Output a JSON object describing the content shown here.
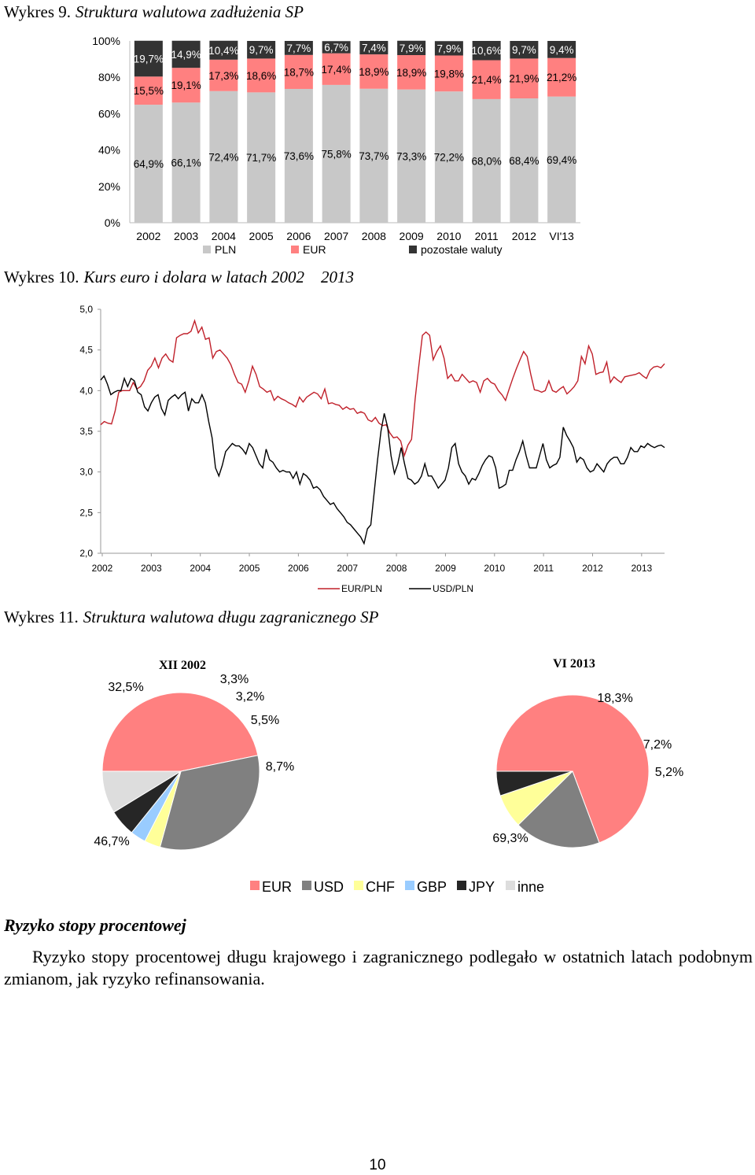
{
  "figure9": {
    "label": "Wykres 9.",
    "title": "Struktura walutowa zadłużenia SP"
  },
  "figure10": {
    "label": "Wykres 10.",
    "title": "Kurs euro i dolara w latach 2002 2013"
  },
  "figure11": {
    "label": "Wykres 11.",
    "title": "Struktura walutowa długu zagranicznego SP"
  },
  "colors": {
    "pln": "#c8c8c8",
    "eur": "#ff8080",
    "other": "#333333",
    "usd": "#808080",
    "chf": "#ffff99",
    "gbp": "#99ccff",
    "jpy": "#262626",
    "inne": "#dddddd",
    "eur_line": "#c0202a",
    "usd_line": "#000000"
  },
  "chart_data": [
    {
      "type": "bar",
      "stacked": true,
      "title": "Struktura walutowa zadłużenia SP",
      "categories": [
        "2002",
        "2003",
        "2004",
        "2005",
        "2006",
        "2007",
        "2008",
        "2009",
        "2010",
        "2011",
        "2012",
        "VI'13"
      ],
      "y_ticks": [
        "0%",
        "20%",
        "40%",
        "60%",
        "80%",
        "100%"
      ],
      "ylim": [
        0,
        100
      ],
      "series": [
        {
          "name": "PLN",
          "values": [
            64.9,
            66.1,
            72.4,
            71.7,
            73.6,
            75.8,
            73.7,
            73.3,
            72.2,
            68.0,
            68.4,
            69.4
          ],
          "labels": [
            "64,9%",
            "66,1%",
            "72,4%",
            "71,7%",
            "73,6%",
            "75,8%",
            "73,7%",
            "73,3%",
            "72,2%",
            "68,0%",
            "68,4%",
            "69,4%"
          ]
        },
        {
          "name": "EUR",
          "values": [
            15.5,
            19.1,
            17.3,
            18.6,
            18.7,
            17.4,
            18.9,
            18.9,
            19.8,
            21.4,
            21.9,
            21.2
          ],
          "labels": [
            "15,5%",
            "19,1%",
            "17,3%",
            "18,6%",
            "18,7%",
            "17,4%",
            "18,9%",
            "18,9%",
            "19,8%",
            "21,4%",
            "21,9%",
            "21,2%"
          ]
        },
        {
          "name": "pozostałe waluty",
          "values": [
            19.7,
            14.9,
            10.4,
            9.7,
            7.7,
            6.7,
            7.4,
            7.9,
            7.9,
            10.6,
            9.7,
            9.4
          ],
          "labels": [
            "19,7%",
            "14,9%",
            "10,4%",
            "9,7%",
            "7,7%",
            "6,7%",
            "7,4%",
            "7,9%",
            "7,9%",
            "10,6%",
            "9,7%",
            "9,4%"
          ]
        }
      ],
      "legend": [
        "PLN",
        "EUR",
        "pozostałe waluty"
      ]
    },
    {
      "type": "line",
      "title": "Kurs euro i dolara w latach 2002 2013",
      "x_ticks": [
        "2002",
        "2003",
        "2004",
        "2005",
        "2006",
        "2007",
        "2008",
        "2009",
        "2010",
        "2011",
        "2012",
        "2013"
      ],
      "y_ticks": [
        "2,0",
        "2,5",
        "3,0",
        "3,5",
        "4,0",
        "4,5",
        "5,0"
      ],
      "ylim": [
        2.0,
        5.0
      ],
      "x_start": 2002.0,
      "x_step": 0.125,
      "series": [
        {
          "name": "EUR/PLN",
          "values": [
            3.58,
            3.62,
            3.6,
            3.59,
            3.75,
            3.98,
            4.0,
            4.0,
            4.0,
            4.1,
            4.02,
            4.05,
            4.12,
            4.25,
            4.3,
            4.4,
            4.28,
            4.4,
            4.45,
            4.38,
            4.35,
            4.65,
            4.68,
            4.7,
            4.7,
            4.73,
            4.86,
            4.71,
            4.78,
            4.63,
            4.65,
            4.4,
            4.48,
            4.5,
            4.45,
            4.4,
            4.32,
            4.2,
            4.1,
            4.08,
            3.98,
            4.12,
            4.3,
            4.2,
            4.05,
            4.02,
            3.98,
            4.0,
            3.88,
            3.93,
            3.9,
            3.88,
            3.85,
            3.83,
            3.8,
            3.92,
            3.86,
            3.92,
            3.95,
            3.98,
            3.96,
            3.9,
            4.02,
            3.84,
            3.85,
            3.83,
            3.82,
            3.77,
            3.8,
            3.77,
            3.78,
            3.72,
            3.74,
            3.72,
            3.64,
            3.62,
            3.67,
            3.6,
            3.57,
            3.58,
            3.48,
            3.42,
            3.43,
            3.38,
            3.2,
            3.33,
            3.4,
            3.9,
            4.3,
            4.68,
            4.72,
            4.68,
            4.38,
            4.48,
            4.55,
            4.4,
            4.15,
            4.2,
            4.12,
            4.12,
            4.2,
            4.15,
            4.1,
            4.12,
            4.1,
            3.98,
            4.12,
            4.15,
            4.1,
            4.08,
            4.0,
            3.95,
            3.88,
            4.02,
            4.15,
            4.27,
            4.38,
            4.48,
            4.42,
            4.2,
            4.01,
            4.0,
            3.98,
            4.0,
            4.12,
            4.0,
            3.98,
            4.02,
            4.05,
            3.96,
            4.0,
            4.05,
            4.12,
            4.42,
            4.33,
            4.55,
            4.45,
            4.2,
            4.22,
            4.23,
            4.35,
            4.1,
            4.17,
            4.13,
            4.1,
            4.17,
            4.18,
            4.19,
            4.2,
            4.22,
            4.18,
            4.15,
            4.25,
            4.29,
            4.3,
            4.28,
            4.33
          ]
        },
        {
          "name": "USD/PLN",
          "values": [
            4.13,
            4.18,
            4.08,
            3.95,
            3.98,
            4.0,
            4.0,
            4.15,
            4.05,
            4.15,
            4.12,
            3.98,
            3.95,
            3.8,
            3.75,
            3.85,
            3.92,
            3.95,
            3.78,
            3.7,
            3.88,
            3.92,
            3.95,
            3.9,
            3.95,
            3.98,
            3.75,
            3.9,
            3.85,
            3.85,
            3.95,
            3.85,
            3.62,
            3.42,
            3.05,
            2.95,
            3.08,
            3.25,
            3.3,
            3.35,
            3.32,
            3.32,
            3.28,
            3.22,
            3.35,
            3.3,
            3.2,
            3.1,
            3.05,
            3.28,
            3.15,
            3.12,
            3.05,
            3.0,
            3.02,
            3.0,
            3.0,
            2.92,
            3.0,
            2.85,
            2.98,
            2.95,
            2.9,
            2.8,
            2.82,
            2.78,
            2.7,
            2.65,
            2.6,
            2.62,
            2.55,
            2.5,
            2.45,
            2.38,
            2.35,
            2.3,
            2.25,
            2.2,
            2.12,
            2.3,
            2.35,
            2.75,
            3.15,
            3.5,
            3.72,
            3.55,
            3.2,
            2.98,
            3.1,
            3.3,
            3.1,
            2.92,
            2.9,
            2.85,
            2.88,
            2.95,
            3.1,
            2.95,
            2.95,
            2.88,
            2.8,
            2.85,
            2.9,
            3.05,
            3.3,
            3.35,
            3.1,
            3.0,
            2.95,
            2.85,
            2.92,
            2.9,
            2.98,
            3.08,
            3.15,
            3.2,
            3.18,
            3.05,
            2.8,
            2.82,
            2.85,
            3.02,
            3.02,
            3.15,
            3.25,
            3.38,
            3.2,
            3.05,
            3.05,
            3.05,
            3.2,
            3.35,
            3.15,
            3.05,
            3.08,
            3.1,
            3.18,
            3.55,
            3.45,
            3.38,
            3.3,
            3.12,
            3.18,
            3.15,
            3.05,
            3.0,
            3.02,
            3.1,
            3.05,
            3.0,
            3.1,
            3.15,
            3.18,
            3.18,
            3.1,
            3.1,
            3.18,
            3.3,
            3.25,
            3.25,
            3.32,
            3.3,
            3.35,
            3.32,
            3.3,
            3.32,
            3.33,
            3.3
          ]
        }
      ],
      "legend": [
        "EUR/PLN",
        "USD/PLN"
      ]
    },
    {
      "type": "pie",
      "title": "XII 2002",
      "categories": [
        "EUR",
        "USD",
        "CHF",
        "GBP",
        "JPY",
        "inne"
      ],
      "values": [
        46.7,
        32.5,
        3.3,
        3.2,
        5.5,
        8.7
      ],
      "labels": [
        "46,7%",
        "32,5%",
        "3,3%",
        "3,2%",
        "5,5%",
        "8,7%"
      ]
    },
    {
      "type": "pie",
      "title": "VI 2013",
      "categories": [
        "EUR",
        "USD",
        "CHF",
        "JPY"
      ],
      "values": [
        69.3,
        18.3,
        7.2,
        5.2
      ],
      "labels": [
        "69,3%",
        "18,3%",
        "7,2%",
        "5,2%"
      ]
    }
  ],
  "pie_legend": [
    "EUR",
    "USD",
    "CHF",
    "GBP",
    "JPY",
    "inne"
  ],
  "section": {
    "heading": "Ryzyko stopy procentowej",
    "paragraph": "Ryzyko stopy procentowej długu krajowego i zagranicznego podlegało w ostatnich latach podobnym zmianom, jak ryzyko refinansowania."
  },
  "page_number": "10"
}
